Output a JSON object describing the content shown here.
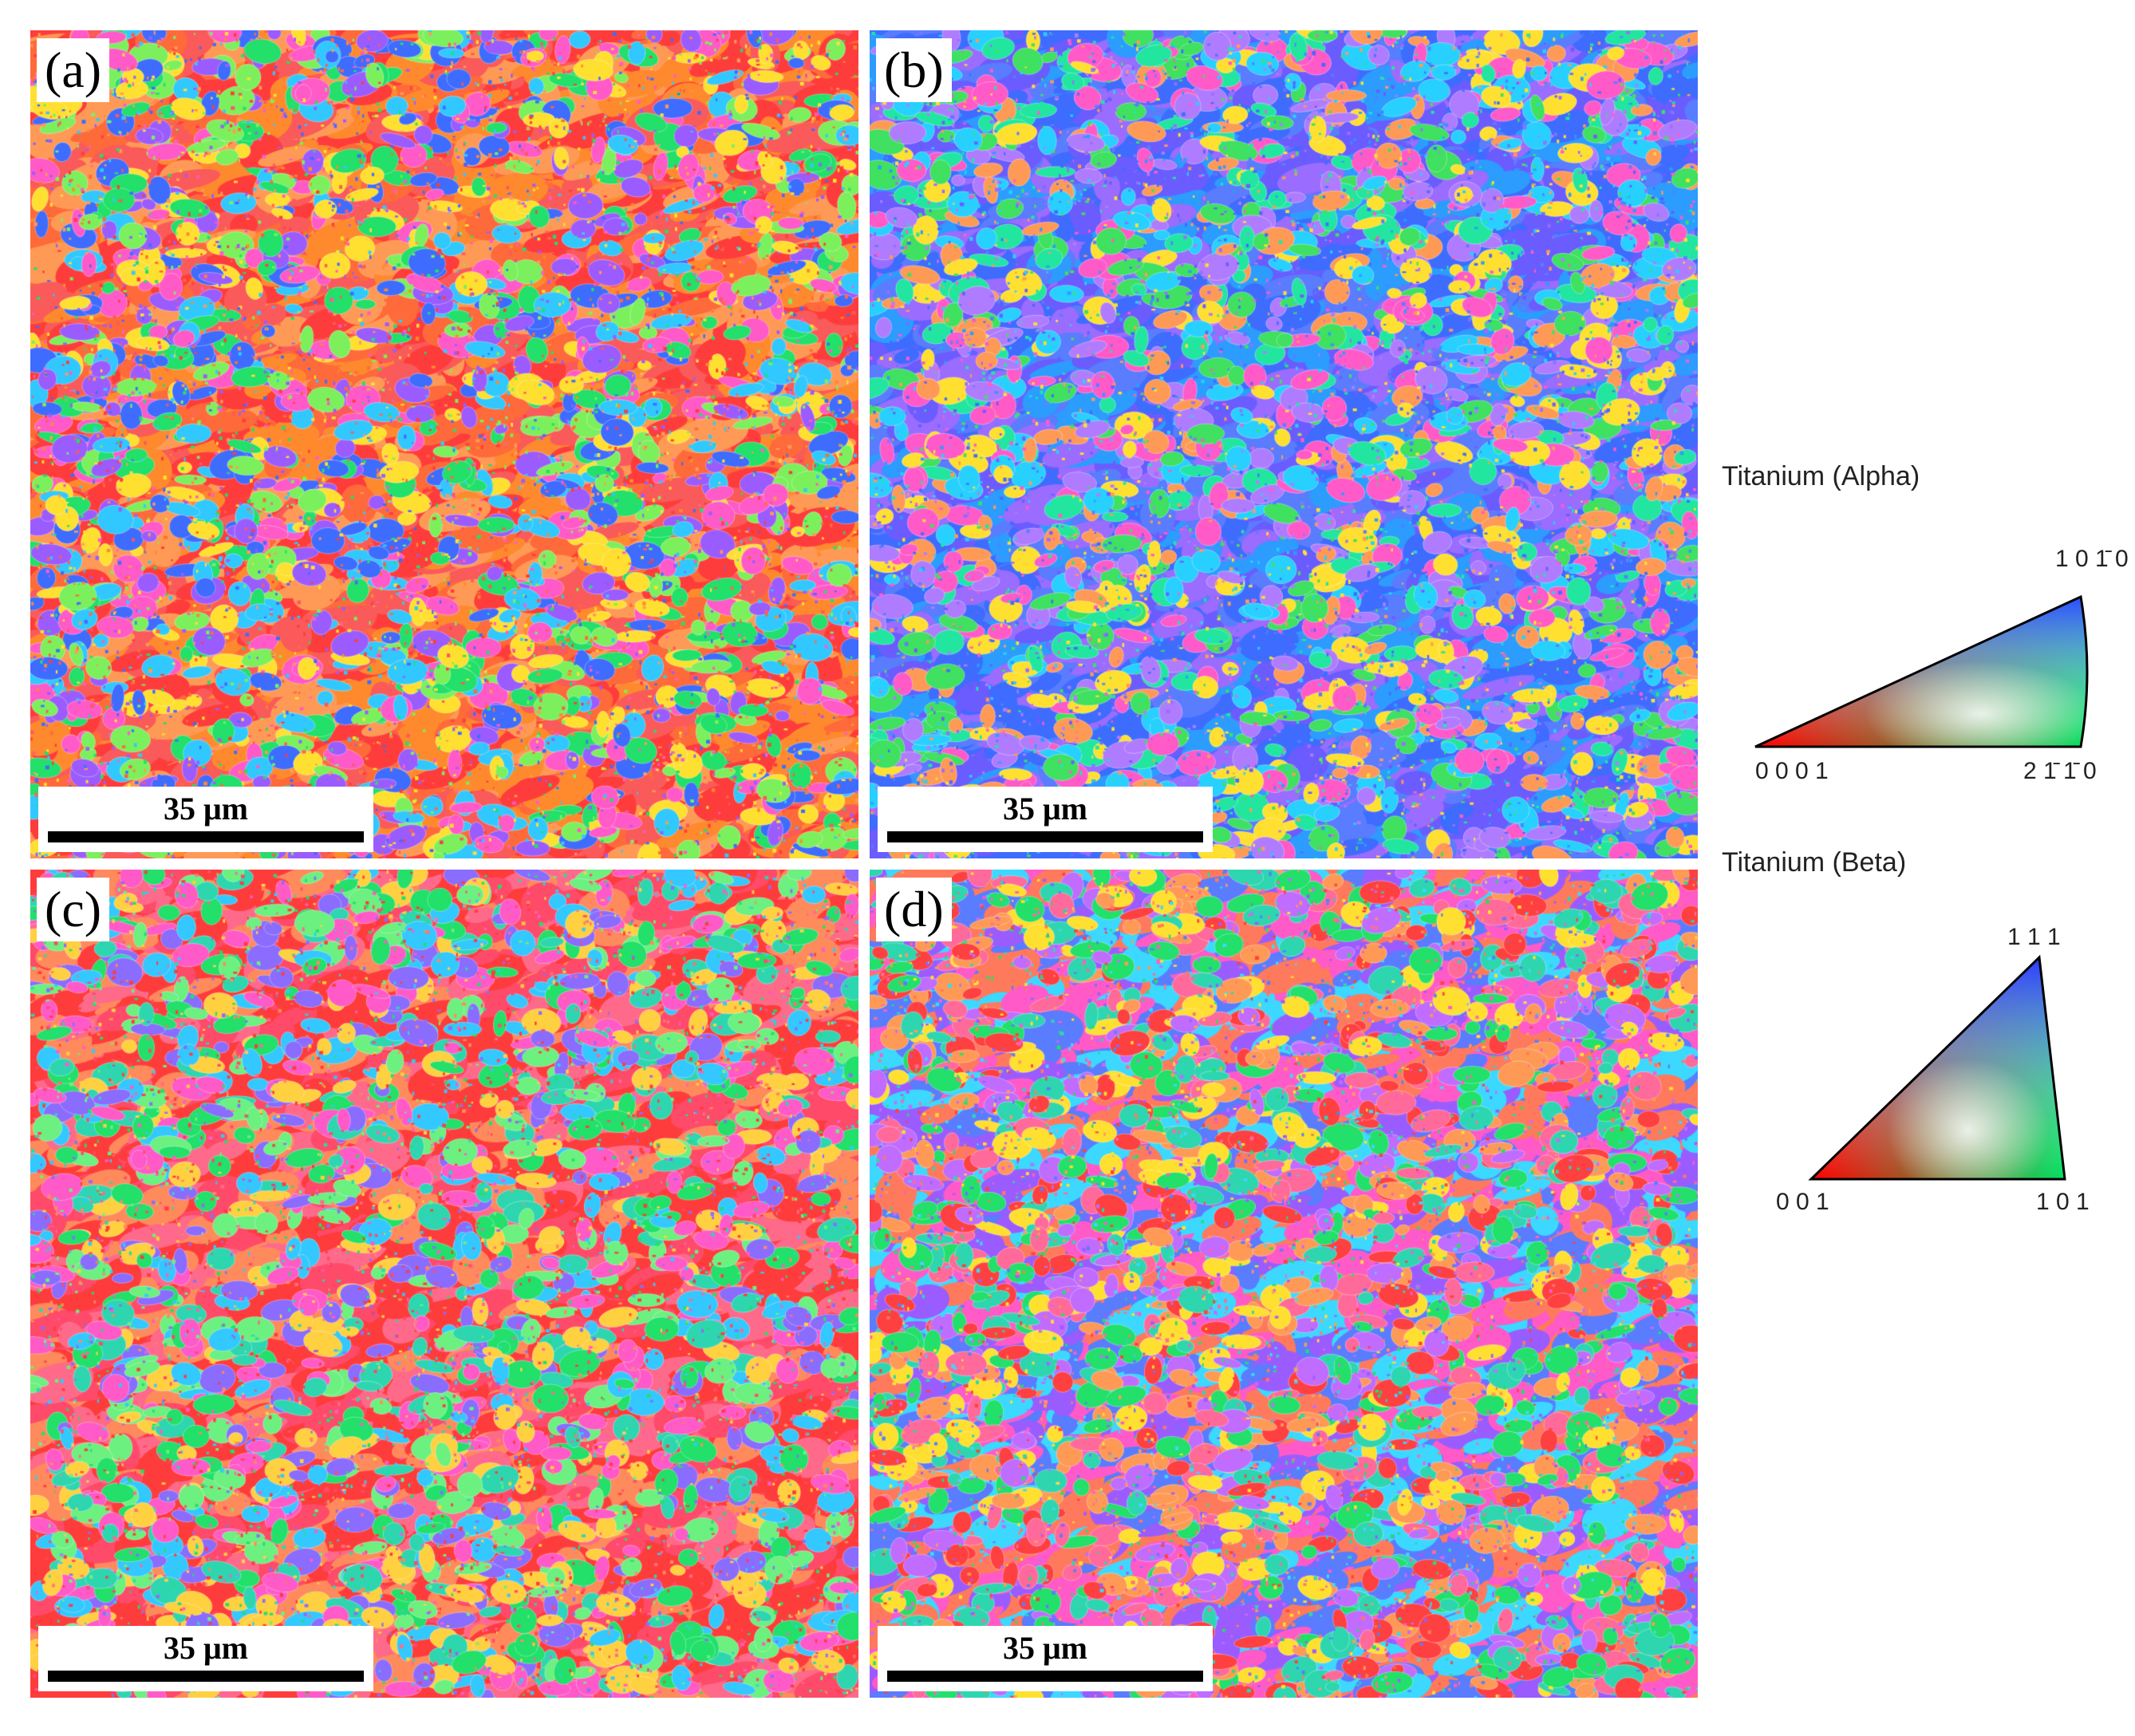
{
  "panels": [
    {
      "label": "(a)",
      "scalebar": "35 μm",
      "palette": [
        "#ff3c3c",
        "#ff6a3a",
        "#ff8a2e",
        "#fa5a5a",
        "#ff9a56",
        "#22e06a",
        "#31c8ff",
        "#ff5ac8",
        "#ffe030",
        "#3e6cff",
        "#9a5cff",
        "#7cf05c"
      ]
    },
    {
      "label": "(b)",
      "scalebar": "35 μm",
      "palette": [
        "#3e6cff",
        "#5a7cff",
        "#2c9cff",
        "#6a5cff",
        "#9a6cff",
        "#27d0ff",
        "#22e6a0",
        "#ff5ac8",
        "#ff9a56",
        "#b07cff",
        "#40e060",
        "#ffe030"
      ]
    },
    {
      "label": "(c)",
      "scalebar": "35 μm",
      "palette": [
        "#ff3c3c",
        "#ff4a6a",
        "#ff6a8a",
        "#ff3c3c",
        "#ff8a5c",
        "#22e06a",
        "#2ed6b0",
        "#ff5ac8",
        "#ffd040",
        "#8a6cff",
        "#33c8ff",
        "#6cf080"
      ]
    },
    {
      "label": "(d)",
      "scalebar": "35 μm",
      "palette": [
        "#ff7a5c",
        "#ff5ac8",
        "#9a5cff",
        "#5a7cff",
        "#3cd8ff",
        "#22e06a",
        "#ffe030",
        "#ff4040",
        "#c06cff",
        "#ff9a56",
        "#2ed6b0",
        "#ff6a9a"
      ]
    }
  ],
  "legend": {
    "alpha": {
      "title": "Titanium (Alpha)",
      "top_label": "1 0 1̄ 0",
      "left_label": "0 0 0 1",
      "right_label": "2 1̄ 1̄ 0"
    },
    "beta": {
      "title": "Titanium (Beta)",
      "top_label": "1 1 1",
      "left_label": "0 0 1",
      "right_label": "1 0 1"
    }
  }
}
